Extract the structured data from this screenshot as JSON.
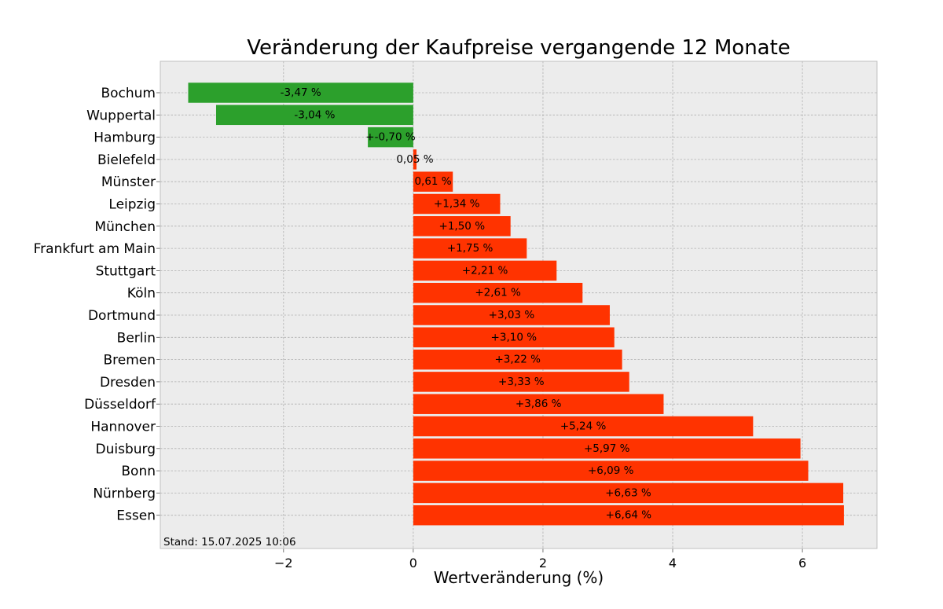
{
  "chart_data": {
    "type": "bar",
    "orientation": "horizontal",
    "title": "Veränderung der Kaufpreise vergangende 12 Monate",
    "xlabel": "Wertveränderung (%)",
    "ylabel": "",
    "xlim": [
      -3.9,
      7.15
    ],
    "xticks": [
      -2,
      0,
      2,
      4,
      6
    ],
    "xtick_labels": [
      "−2",
      "0",
      "2",
      "4",
      "6"
    ],
    "grid": true,
    "categories": [
      "Bochum",
      "Wuppertal",
      "Hamburg",
      "Bielefeld",
      "Münster",
      "Leipzig",
      "München",
      "Frankfurt am Main",
      "Stuttgart",
      "Köln",
      "Dortmund",
      "Berlin",
      "Bremen",
      "Dresden",
      "Düsseldorf",
      "Hannover",
      "Duisburg",
      "Bonn",
      "Nürnberg",
      "Essen"
    ],
    "values": [
      -3.47,
      -3.04,
      -0.7,
      0.05,
      0.61,
      1.34,
      1.5,
      1.75,
      2.21,
      2.61,
      3.03,
      3.1,
      3.22,
      3.33,
      3.86,
      5.24,
      5.97,
      6.09,
      6.63,
      6.64
    ],
    "data_labels": [
      "-3,47 %",
      "-3,04 %",
      "+-0,70 %",
      "0,05 %",
      "0,61 %",
      "+1,34 %",
      "+1,50 %",
      "+1,75 %",
      "+2,21 %",
      "+2,61 %",
      "+3,03 %",
      "+3,10 %",
      "+3,22 %",
      "+3,33 %",
      "+3,86 %",
      "+5,24 %",
      "+5,97 %",
      "+6,09 %",
      "+6,63 %",
      "+6,64 %"
    ],
    "colors": {
      "negative": "#2ca02c",
      "positive": "#ff3300",
      "background": "#ececec",
      "frame": "#bfbfbf"
    },
    "annotation": "Stand: 15.07.2025 10:06"
  }
}
